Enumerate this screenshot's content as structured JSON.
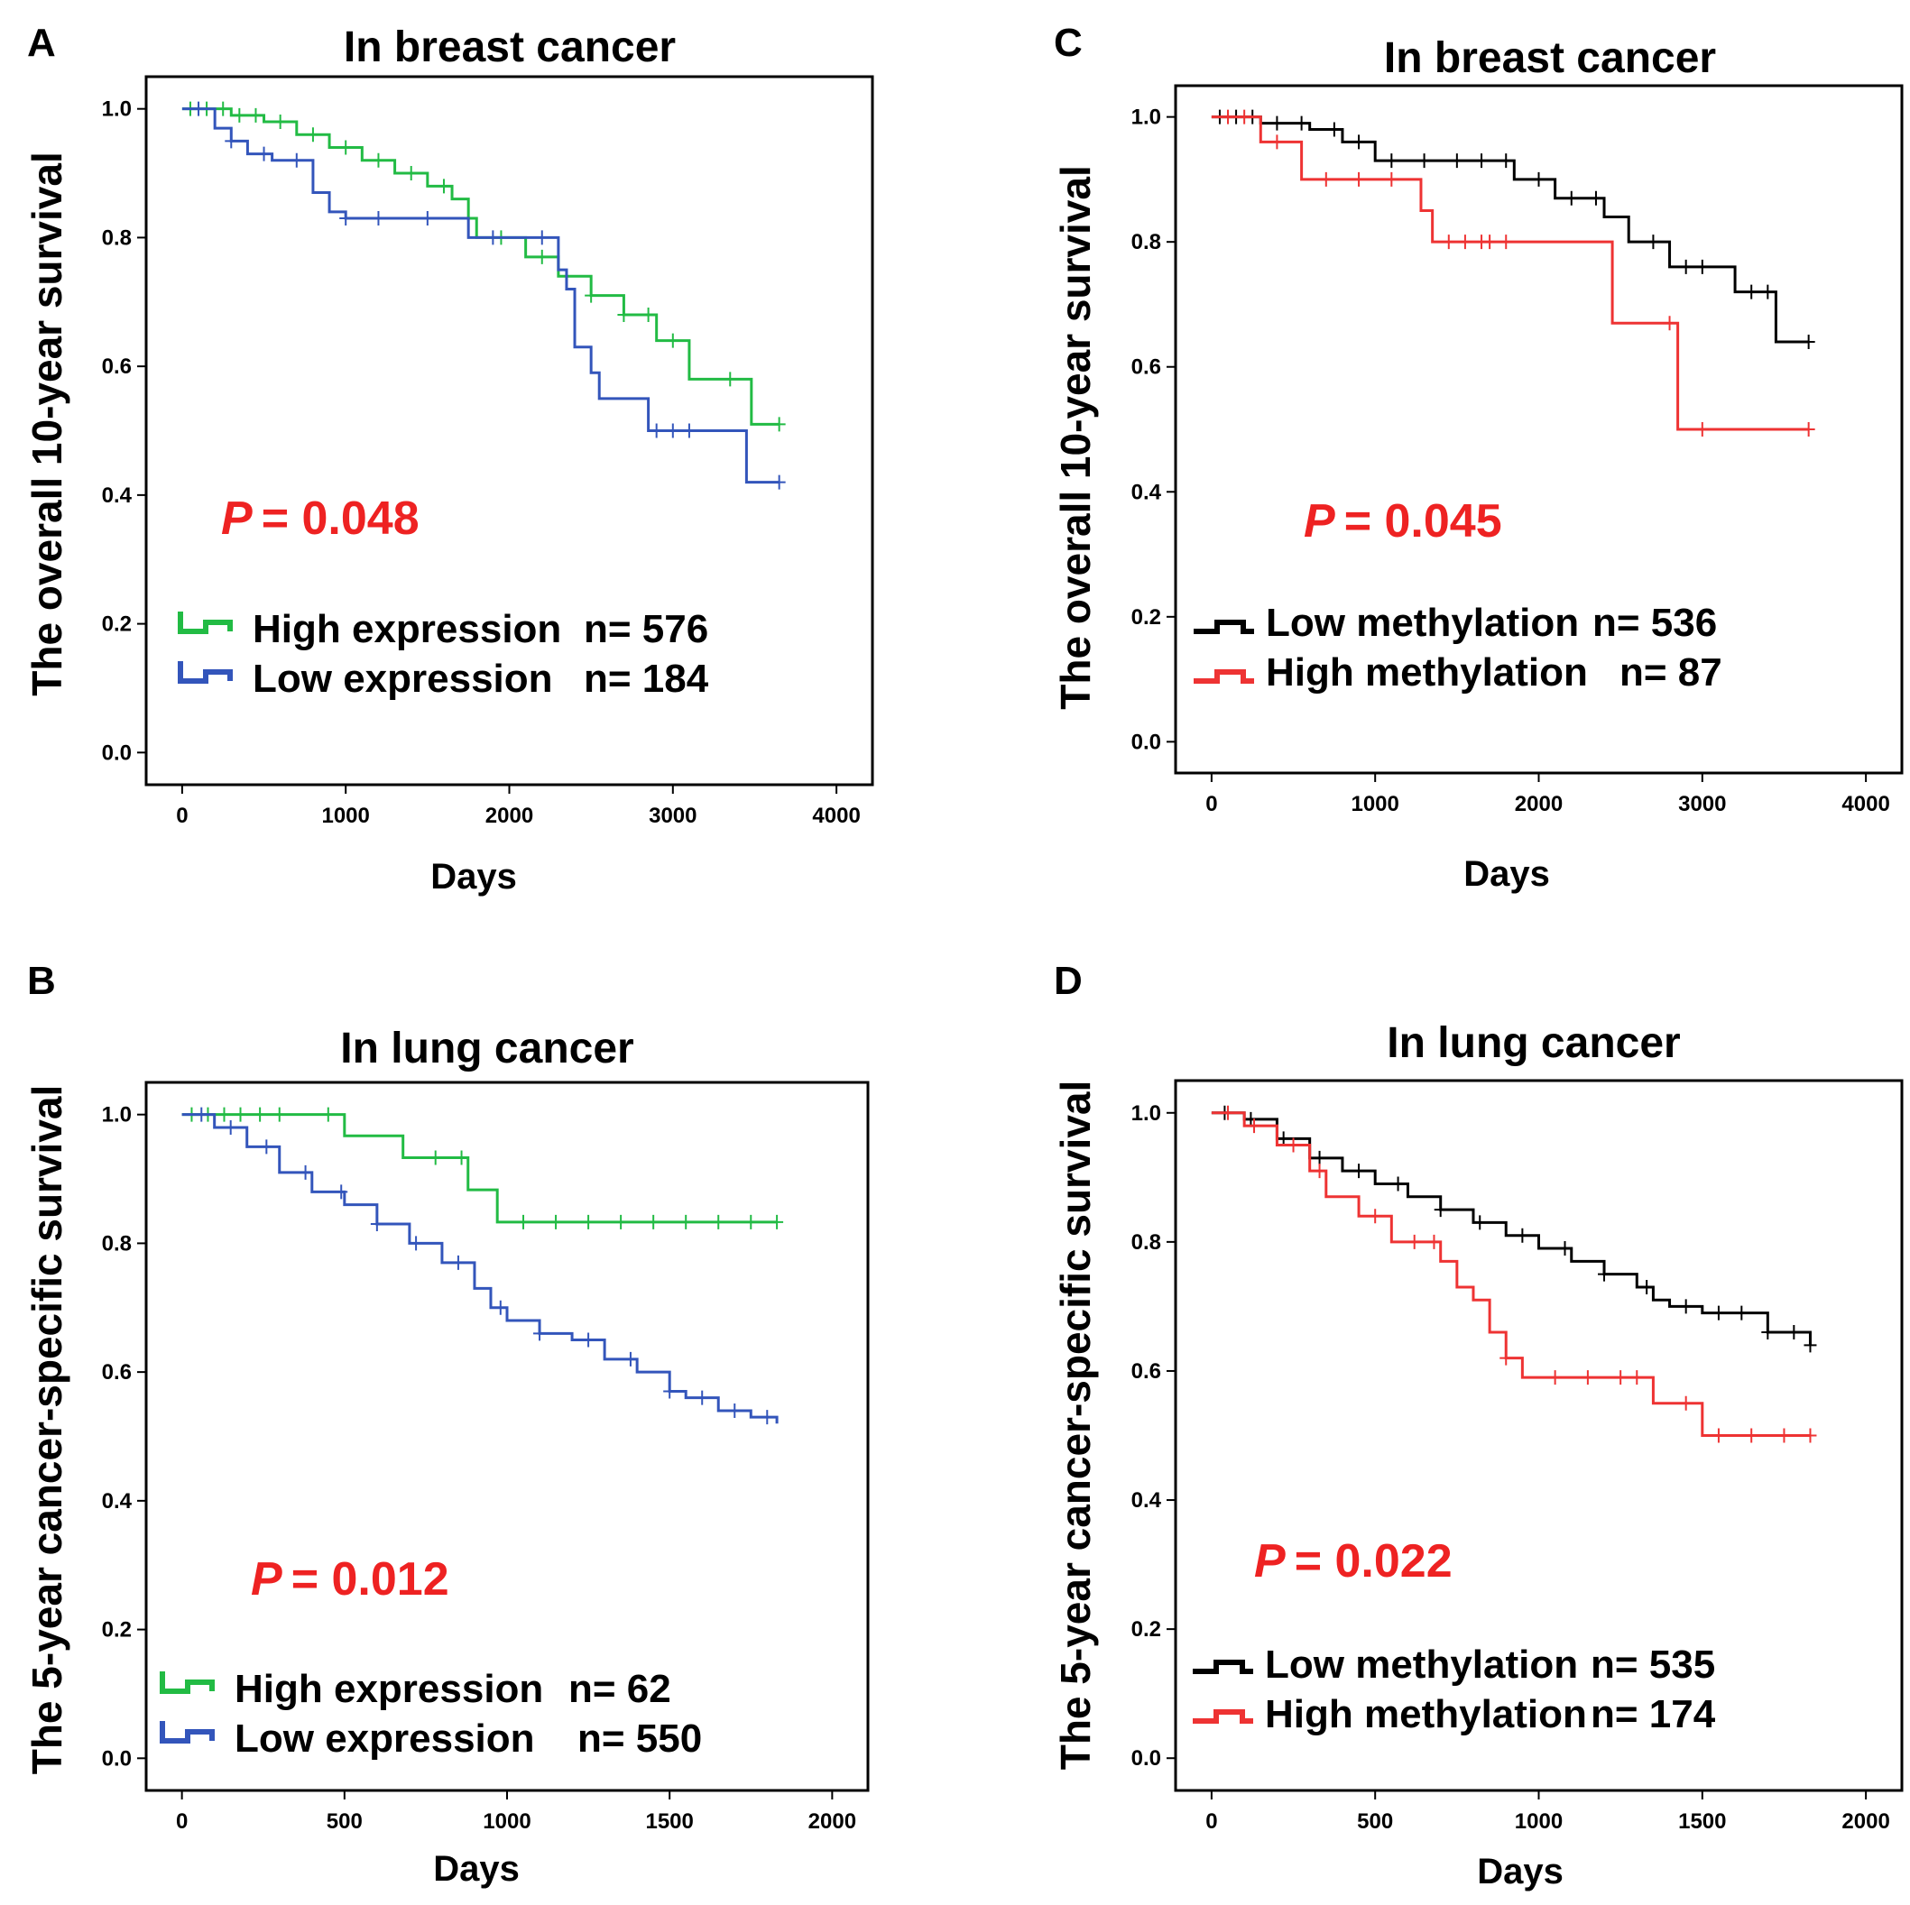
{
  "chart_data": [
    {
      "panel": "A",
      "type": "line",
      "title": "In breast cancer",
      "xlabel": "Days",
      "ylabel": "The overall 10-year survival",
      "xlim": [
        -220,
        4220
      ],
      "ylim": [
        -0.05,
        1.05
      ],
      "xticks": [
        0,
        1000,
        2000,
        3000,
        4000
      ],
      "xtick_labels": [
        "0",
        "1000",
        "2000",
        "3000",
        "4000"
      ],
      "yticks": [
        0.0,
        0.2,
        0.4,
        0.6,
        0.8,
        1.0
      ],
      "ytick_labels": [
        "0.0",
        "0.2",
        "0.4",
        "0.6",
        "0.8",
        "1.0"
      ],
      "p_value": {
        "prefix": "P",
        "text": "= 0.048"
      },
      "series": [
        {
          "name": "High expression",
          "n_label": "n= 576",
          "color": "#22bb44",
          "x": [
            0,
            300,
            500,
            700,
            900,
            1100,
            1300,
            1500,
            1650,
            1750,
            1800,
            1900,
            2100,
            2300,
            2500,
            2700,
            2900,
            3100,
            3300,
            3450,
            3480,
            3650
          ],
          "y": [
            1.0,
            0.99,
            0.98,
            0.96,
            0.94,
            0.92,
            0.9,
            0.88,
            0.86,
            0.83,
            0.8,
            0.8,
            0.77,
            0.74,
            0.71,
            0.68,
            0.64,
            0.58,
            0.58,
            0.58,
            0.51,
            0.51
          ],
          "censor_x": [
            50,
            150,
            250,
            350,
            450,
            600,
            800,
            1000,
            1200,
            1400,
            1600,
            1750,
            1950,
            2200,
            2500,
            2700,
            2850,
            3000,
            3350,
            3650
          ]
        },
        {
          "name": "Low expression",
          "n_label": "n= 184",
          "color": "#3355bb",
          "x": [
            0,
            200,
            300,
            400,
            550,
            800,
            900,
            1000,
            1100,
            1200,
            1700,
            1750,
            2300,
            2350,
            2400,
            2500,
            2550,
            2850,
            3450,
            3650
          ],
          "y": [
            1.0,
            0.97,
            0.95,
            0.93,
            0.92,
            0.87,
            0.84,
            0.83,
            0.83,
            0.83,
            0.83,
            0.8,
            0.75,
            0.72,
            0.63,
            0.59,
            0.55,
            0.5,
            0.42,
            0.42
          ],
          "censor_x": [
            100,
            300,
            500,
            700,
            1000,
            1200,
            1500,
            1900,
            2200,
            2900,
            3000,
            3100,
            3650
          ]
        }
      ]
    },
    {
      "panel": "B",
      "type": "line",
      "title": "In lung cancer",
      "xlabel": "Days",
      "ylabel": "The 5-year cancer-specific survival",
      "xlim": [
        -110,
        2110
      ],
      "ylim": [
        -0.05,
        1.05
      ],
      "xticks": [
        0,
        500,
        1000,
        1500,
        2000
      ],
      "xtick_labels": [
        "0",
        "500",
        "1000",
        "1500",
        "2000"
      ],
      "yticks": [
        0.0,
        0.2,
        0.4,
        0.6,
        0.8,
        1.0
      ],
      "ytick_labels": [
        "0.0",
        "0.2",
        "0.4",
        "0.6",
        "0.8",
        "1.0"
      ],
      "p_value": {
        "prefix": "P",
        "text": "= 0.012"
      },
      "series": [
        {
          "name": "High expression",
          "n_label": "n= 62",
          "color": "#22bb44",
          "x": [
            0,
            500,
            680,
            880,
            970,
            1830
          ],
          "y": [
            1.0,
            0.967,
            0.933,
            0.883,
            0.833,
            0.833
          ],
          "censor_x": [
            30,
            80,
            130,
            180,
            240,
            300,
            450,
            780,
            860,
            1050,
            1150,
            1250,
            1350,
            1450,
            1550,
            1650,
            1750,
            1830
          ]
        },
        {
          "name": "Low expression",
          "n_label": "n= 550",
          "color": "#3355bb",
          "x": [
            0,
            100,
            200,
            300,
            400,
            500,
            600,
            700,
            800,
            900,
            950,
            1000,
            1100,
            1200,
            1300,
            1400,
            1500,
            1550,
            1650,
            1750,
            1830
          ],
          "y": [
            1.0,
            0.98,
            0.95,
            0.91,
            0.88,
            0.86,
            0.83,
            0.8,
            0.77,
            0.73,
            0.7,
            0.68,
            0.66,
            0.65,
            0.62,
            0.6,
            0.57,
            0.56,
            0.54,
            0.53,
            0.52
          ],
          "censor_x": [
            60,
            150,
            260,
            380,
            490,
            600,
            720,
            850,
            980,
            1100,
            1250,
            1380,
            1500,
            1600,
            1700,
            1800
          ]
        }
      ]
    },
    {
      "panel": "C",
      "type": "line",
      "title": "In breast cancer",
      "xlabel": "Days",
      "ylabel": "The overall 10-year survival",
      "xlim": [
        -220,
        4220
      ],
      "ylim": [
        -0.05,
        1.05
      ],
      "xticks": [
        0,
        1000,
        2000,
        3000,
        4000
      ],
      "xtick_labels": [
        "0",
        "1000",
        "2000",
        "3000",
        "4000"
      ],
      "yticks": [
        0.0,
        0.2,
        0.4,
        0.6,
        0.8,
        1.0
      ],
      "ytick_labels": [
        "0.0",
        "0.2",
        "0.4",
        "0.6",
        "0.8",
        "1.0"
      ],
      "p_value": {
        "prefix": "P",
        "text": "= 0.045"
      },
      "series": [
        {
          "name": "Low methylation",
          "n_label": "n= 536",
          "color": "#000000",
          "x": [
            0,
            300,
            600,
            800,
            1000,
            1700,
            1850,
            2100,
            2400,
            2550,
            2800,
            3100,
            3200,
            3450,
            3650
          ],
          "y": [
            1.0,
            0.99,
            0.98,
            0.96,
            0.93,
            0.93,
            0.9,
            0.87,
            0.84,
            0.8,
            0.76,
            0.76,
            0.72,
            0.64,
            0.64
          ],
          "censor_x": [
            50,
            150,
            250,
            400,
            550,
            750,
            900,
            1100,
            1300,
            1500,
            1650,
            1800,
            2000,
            2200,
            2350,
            2700,
            2900,
            3000,
            3300,
            3400,
            3650
          ]
        },
        {
          "name": "High methylation",
          "n_label": "n= 87",
          "color": "#ee3333",
          "x": [
            0,
            300,
            550,
            1280,
            1350,
            2450,
            2850,
            3650
          ],
          "y": [
            1.0,
            0.96,
            0.9,
            0.85,
            0.8,
            0.67,
            0.5,
            0.5
          ],
          "censor_x": [
            100,
            200,
            400,
            700,
            900,
            1100,
            1450,
            1550,
            1650,
            1700,
            1800,
            2800,
            3000,
            3650
          ]
        }
      ]
    },
    {
      "panel": "D",
      "type": "line",
      "title": "In lung cancer",
      "xlabel": "Days",
      "ylabel": "The 5-year cancer-specific survival",
      "xlim": [
        -110,
        2110
      ],
      "ylim": [
        -0.05,
        1.05
      ],
      "xticks": [
        0,
        500,
        1000,
        1500,
        2000
      ],
      "xtick_labels": [
        "0",
        "500",
        "1000",
        "1500",
        "2000"
      ],
      "yticks": [
        0.0,
        0.2,
        0.4,
        0.6,
        0.8,
        1.0
      ],
      "ytick_labels": [
        "0.0",
        "0.2",
        "0.4",
        "0.6",
        "0.8",
        "1.0"
      ],
      "p_value": {
        "prefix": "P",
        "text": "= 0.022"
      },
      "series": [
        {
          "name": "Low methylation",
          "n_label": "n= 535",
          "color": "#000000",
          "x": [
            0,
            100,
            200,
            300,
            400,
            500,
            600,
            700,
            800,
            900,
            1000,
            1100,
            1200,
            1300,
            1350,
            1400,
            1500,
            1650,
            1700,
            1830
          ],
          "y": [
            1.0,
            0.99,
            0.96,
            0.93,
            0.91,
            0.89,
            0.87,
            0.85,
            0.83,
            0.81,
            0.79,
            0.77,
            0.75,
            0.73,
            0.71,
            0.7,
            0.69,
            0.69,
            0.66,
            0.64
          ],
          "censor_x": [
            40,
            120,
            220,
            330,
            450,
            570,
            700,
            820,
            950,
            1080,
            1200,
            1330,
            1450,
            1550,
            1620,
            1700,
            1780,
            1830
          ]
        },
        {
          "name": "High methylation",
          "n_label": "n= 174",
          "color": "#ee3333",
          "x": [
            0,
            100,
            200,
            300,
            350,
            450,
            550,
            700,
            750,
            800,
            850,
            900,
            950,
            1000,
            1350,
            1500,
            1830
          ],
          "y": [
            1.0,
            0.98,
            0.95,
            0.91,
            0.87,
            0.84,
            0.8,
            0.77,
            0.73,
            0.71,
            0.66,
            0.62,
            0.59,
            0.59,
            0.55,
            0.5,
            0.5
          ],
          "censor_x": [
            50,
            130,
            250,
            330,
            500,
            620,
            680,
            900,
            1050,
            1150,
            1250,
            1300,
            1450,
            1550,
            1650,
            1750,
            1830
          ]
        }
      ]
    }
  ]
}
